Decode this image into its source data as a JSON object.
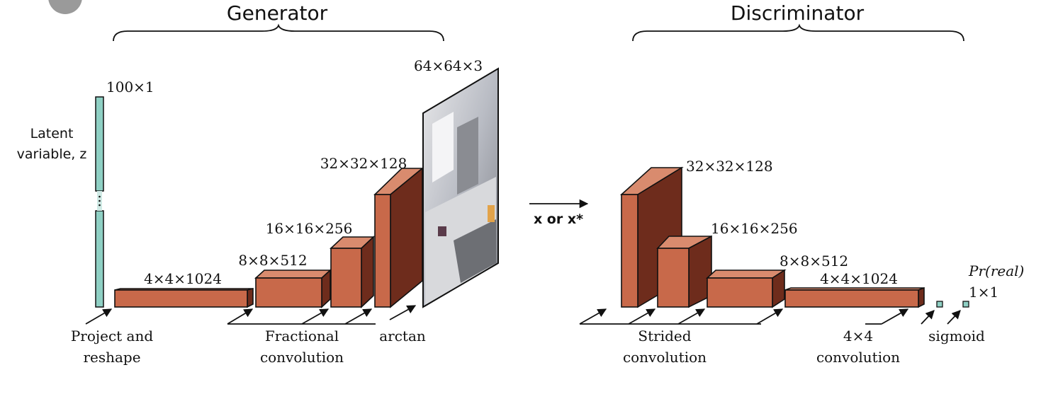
{
  "generator": {
    "title": "Generator",
    "latent_label_line1": "Latent",
    "latent_label_line2": "variable, z",
    "latent_dim": "100×1",
    "layers": [
      "4×4×1024",
      "8×8×512",
      "16×16×256",
      "32×32×128"
    ],
    "image_dim": "64×64×3",
    "ops": {
      "project_line1": "Project and",
      "project_line2": "reshape",
      "fractional_line1": "Fractional",
      "fractional_line2": "convolution",
      "arctan": "arctan"
    }
  },
  "middle": {
    "input_label": "x or x*"
  },
  "discriminator": {
    "title": "Discriminator",
    "layers": [
      "32×32×128",
      "16×16×256",
      "8×8×512",
      "4×4×1024"
    ],
    "output_label": "Pr(real)",
    "output_dim": "1×1",
    "ops": {
      "strided_line1": "Strided",
      "strided_line2": "convolution",
      "conv4_line1": "4×4",
      "conv4_line2": "convolution",
      "sigmoid": "sigmoid"
    }
  },
  "colors": {
    "block_front": "#c8694a",
    "block_top": "#d98b6e",
    "block_side": "#6e2c1c",
    "latent_vector": "#8fd0c4"
  }
}
